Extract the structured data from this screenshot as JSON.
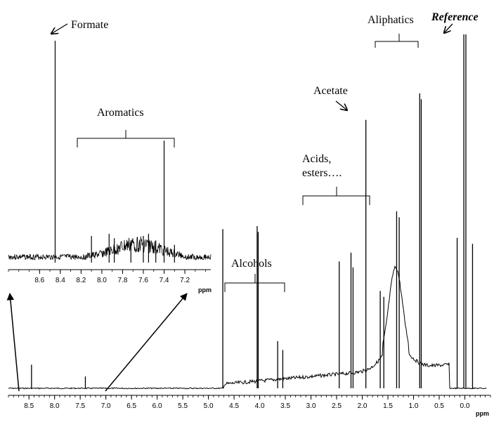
{
  "chart_data": [
    {
      "type": "line",
      "role": "main-spectrum",
      "xlabel": "ppm",
      "xlim": [
        8.9,
        -0.5
      ],
      "x_reversed": true,
      "x_ticks": [
        "8.5",
        "8.0",
        "7.5",
        "7.0",
        "6.5",
        "6.0",
        "5.5",
        "5.0",
        "4.5",
        "4.0",
        "3.5",
        "3.0",
        "2.5",
        "2.0",
        "1.5",
        "1.0",
        "0.5",
        "0.0"
      ],
      "peaks": [
        {
          "x": 8.45,
          "y": 0.08
        },
        {
          "x": 7.4,
          "y": 0.04
        },
        {
          "x": 4.72,
          "y": 0.54
        },
        {
          "x": 4.05,
          "y": 0.55
        },
        {
          "x": 4.03,
          "y": 0.53
        },
        {
          "x": 3.65,
          "y": 0.16
        },
        {
          "x": 3.55,
          "y": 0.13
        },
        {
          "x": 2.45,
          "y": 0.43
        },
        {
          "x": 2.22,
          "y": 0.46
        },
        {
          "x": 2.18,
          "y": 0.41
        },
        {
          "x": 1.93,
          "y": 0.91
        },
        {
          "x": 1.65,
          "y": 0.33
        },
        {
          "x": 1.58,
          "y": 0.31
        },
        {
          "x": 1.33,
          "y": 0.6
        },
        {
          "x": 1.28,
          "y": 0.58
        },
        {
          "x": 0.88,
          "y": 1.0
        },
        {
          "x": 0.85,
          "y": 0.98
        },
        {
          "x": 0.15,
          "y": 0.51
        },
        {
          "x": 0.02,
          "y": 1.2
        },
        {
          "x": -0.02,
          "y": 1.2
        },
        {
          "x": -0.15,
          "y": 0.49
        }
      ],
      "annotations": [
        {
          "label": "Alcohols",
          "range": [
            4.6,
            3.3
          ]
        },
        {
          "label_lines": [
            "Acids,",
            "esters…."
          ],
          "range": [
            2.95,
            1.55
          ]
        },
        {
          "label": "Acetate",
          "x": 1.93
        },
        {
          "label": "Aliphatics",
          "range": [
            1.45,
            0.55
          ]
        },
        {
          "label": "Reference",
          "x": 0.0,
          "style": "bold-italic"
        }
      ]
    },
    {
      "type": "line",
      "role": "inset-spectrum",
      "xlabel": "ppm",
      "xlim": [
        8.9,
        6.95
      ],
      "x_reversed": true,
      "x_ticks": [
        "8.6",
        "8.4",
        "8.2",
        "8.0",
        "7.8",
        "7.6",
        "7.4",
        "7.2"
      ],
      "peaks": [
        {
          "x": 8.45,
          "y": 1.0
        },
        {
          "x": 8.1,
          "y": 0.12
        },
        {
          "x": 7.93,
          "y": 0.13
        },
        {
          "x": 7.88,
          "y": 0.11
        },
        {
          "x": 7.72,
          "y": 0.1
        },
        {
          "x": 7.6,
          "y": 0.12
        },
        {
          "x": 7.55,
          "y": 0.13
        },
        {
          "x": 7.48,
          "y": 0.1
        },
        {
          "x": 7.4,
          "y": 0.55
        },
        {
          "x": 7.3,
          "y": 0.08
        }
      ],
      "annotations": [
        {
          "label": "Formate",
          "x": 8.45
        },
        {
          "label": "Aromatics",
          "range": [
            8.15,
            7.18
          ]
        }
      ]
    }
  ]
}
